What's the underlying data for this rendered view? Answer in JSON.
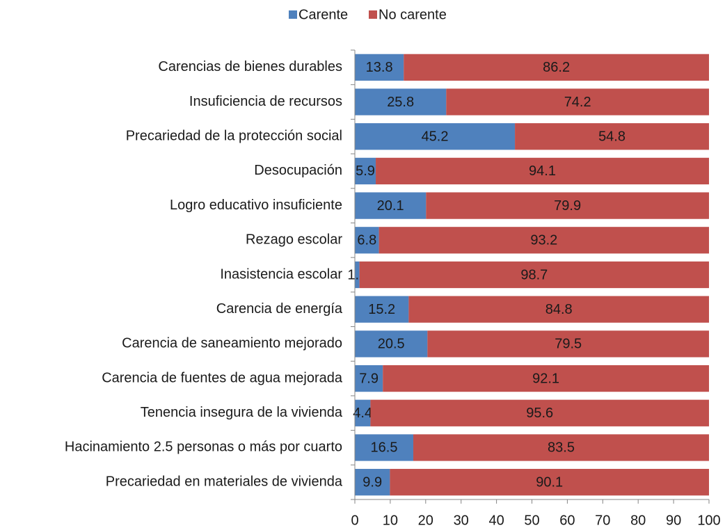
{
  "chart_data": {
    "type": "stacked-barh",
    "categories": [
      "Carencias de bienes durables",
      "Insuficiencia de recursos",
      "Precariedad de la protección social",
      "Desocupación",
      "Logro educativo insuficiente",
      "Rezago escolar",
      "Inasistencia escolar",
      "Carencia de energía",
      "Carencia de saneamiento mejorado",
      "Carencia de fuentes de agua mejorada",
      "Tenencia insegura de la vivienda",
      "Hacinamiento 2.5 personas o más por cuarto",
      "Precariedad en materiales de vivienda"
    ],
    "series": [
      {
        "name": "Carente",
        "color": "#4f81bd",
        "values": [
          13.8,
          25.8,
          45.2,
          5.9,
          20.1,
          6.8,
          1.3,
          15.2,
          20.5,
          7.9,
          4.4,
          16.5,
          9.9
        ]
      },
      {
        "name": "No carente",
        "color": "#c0504d",
        "values": [
          86.2,
          74.2,
          54.8,
          94.1,
          79.9,
          93.2,
          98.7,
          84.8,
          79.5,
          92.1,
          95.6,
          83.5,
          90.1
        ]
      }
    ],
    "xlim": [
      0,
      100
    ],
    "xticks": [
      0,
      10,
      20,
      30,
      40,
      50,
      60,
      70,
      80,
      90,
      100
    ],
    "legend": "top"
  }
}
